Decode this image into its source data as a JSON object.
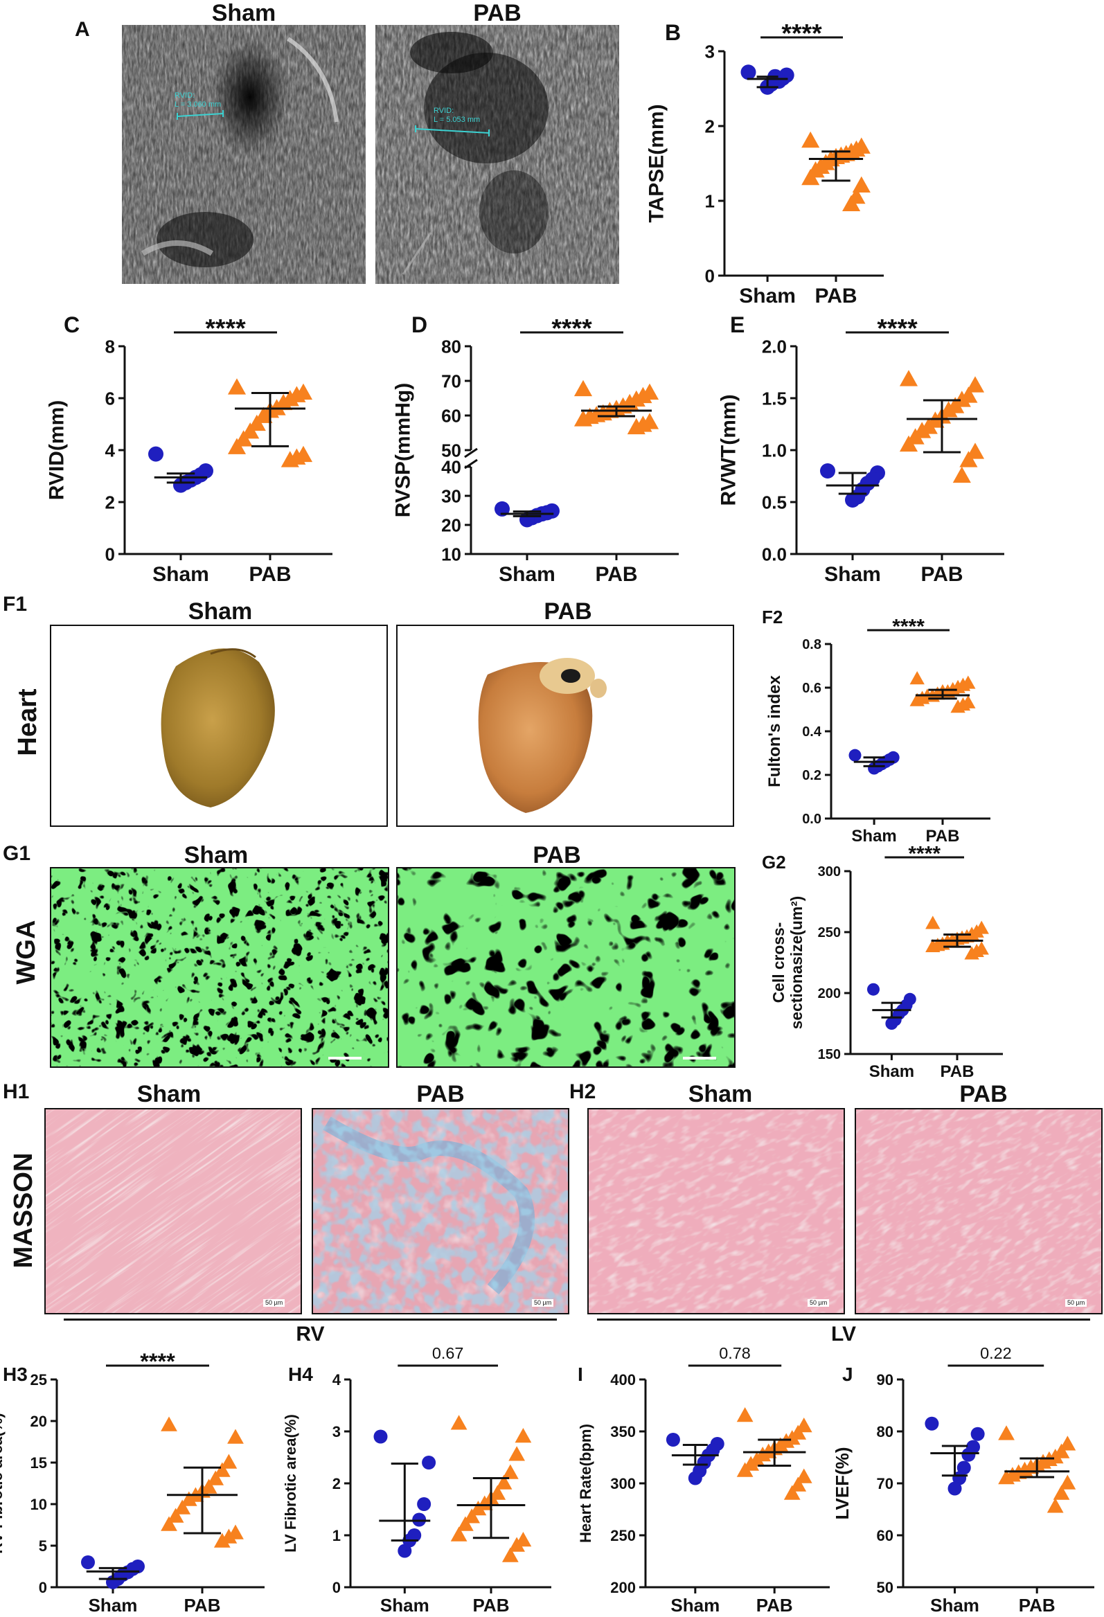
{
  "panels": {
    "A": {
      "letter": "A",
      "sham": "Sham",
      "pab": "PAB",
      "sham_measure": "RVID:\nL = 3.060 mm",
      "pab_measure": "RVID:\nL = 5.053 mm"
    },
    "F1": {
      "letter": "F1",
      "row_label": "Heart",
      "sham": "Sham",
      "pab": "PAB"
    },
    "G1": {
      "letter": "G1",
      "row_label": "WGA",
      "sham": "Sham",
      "pab": "PAB"
    },
    "H1": {
      "letter": "H1",
      "row_label": "MASSON",
      "sham": "Sham",
      "pab": "PAB",
      "group": "RV"
    },
    "H2": {
      "letter": "H2",
      "sham": "Sham",
      "pab": "PAB",
      "group": "LV"
    }
  },
  "scale_bar_label": "50 µm",
  "colors": {
    "sham": "#1f1fbf",
    "pab": "#f7811e",
    "wga": "#33d63a",
    "masson_red": "#d9717f",
    "masson_blue": "#5aa9d6"
  },
  "chart_data": [
    {
      "id": "B",
      "type": "scatter",
      "letter": "B",
      "ylabel": "TAPSE(mm)",
      "categories": [
        "Sham",
        "PAB"
      ],
      "ylim": [
        0,
        3
      ],
      "yticks": [
        "0",
        "1",
        "2",
        "3"
      ],
      "significance": "****",
      "series": [
        {
          "name": "Sham",
          "marker": "circle",
          "values": [
            2.72,
            2.68,
            2.64,
            2.6,
            2.66,
            2.56,
            2.52
          ],
          "mean": 2.63,
          "err": [
            2.52,
            2.66
          ]
        },
        {
          "name": "PAB",
          "marker": "triangle",
          "values": [
            1.8,
            1.72,
            1.68,
            1.65,
            1.62,
            1.6,
            1.58,
            1.55,
            1.5,
            1.45,
            1.4,
            1.3,
            1.2,
            1.05,
            0.95
          ],
          "mean": 1.56,
          "err": [
            1.27,
            1.66
          ]
        }
      ]
    },
    {
      "id": "C",
      "type": "scatter",
      "letter": "C",
      "ylabel": "RVID(mm)",
      "categories": [
        "Sham",
        "PAB"
      ],
      "ylim": [
        0,
        8
      ],
      "yticks": [
        "0",
        "2",
        "4",
        "6",
        "8"
      ],
      "significance": "****",
      "series": [
        {
          "name": "Sham",
          "marker": "circle",
          "values": [
            3.85,
            3.2,
            3.05,
            2.95,
            2.85,
            2.75,
            2.65
          ],
          "mean": 2.95,
          "err": [
            2.75,
            3.1
          ]
        },
        {
          "name": "PAB",
          "marker": "triangle",
          "values": [
            6.4,
            6.2,
            6.1,
            5.95,
            5.8,
            5.6,
            5.5,
            5.3,
            5.0,
            4.7,
            4.4,
            4.1,
            3.8,
            3.7,
            3.6
          ],
          "mean": 5.6,
          "err": [
            4.15,
            6.2
          ]
        }
      ]
    },
    {
      "id": "D",
      "type": "scatter",
      "letter": "D",
      "ylabel": "RVSP(mmHg)",
      "categories": [
        "Sham",
        "PAB"
      ],
      "broken_axis": true,
      "yticks_lower": [
        "10",
        "20",
        "30",
        "40"
      ],
      "yticks_upper": [
        "50",
        "60",
        "70",
        "80"
      ],
      "significance": "****",
      "series": [
        {
          "name": "Sham",
          "marker": "circle",
          "values": [
            25.5,
            24.8,
            24.2,
            23.8,
            23.2,
            22.5,
            21.8
          ],
          "mean": 23.8,
          "err": [
            23.0,
            24.6
          ]
        },
        {
          "name": "PAB",
          "marker": "triangle",
          "values": [
            67.5,
            66.5,
            65.5,
            64.5,
            63.5,
            62.5,
            61.8,
            61.2,
            60.5,
            60.0,
            59.5,
            58.8,
            58.0,
            57.2,
            56.5
          ],
          "mean": 61.4,
          "err": [
            59.8,
            62.6
          ]
        }
      ]
    },
    {
      "id": "E",
      "type": "scatter",
      "letter": "E",
      "ylabel": "RVWT(mm)",
      "categories": [
        "Sham",
        "PAB"
      ],
      "ylim": [
        0,
        2
      ],
      "yticks": [
        "0.0",
        "0.5",
        "1.0",
        "1.5",
        "2.0"
      ],
      "significance": "****",
      "series": [
        {
          "name": "Sham",
          "marker": "circle",
          "values": [
            0.8,
            0.78,
            0.72,
            0.68,
            0.62,
            0.55,
            0.52
          ],
          "mean": 0.66,
          "err": [
            0.58,
            0.78
          ]
        },
        {
          "name": "PAB",
          "marker": "triangle",
          "values": [
            1.68,
            1.62,
            1.52,
            1.48,
            1.42,
            1.38,
            1.32,
            1.28,
            1.22,
            1.18,
            1.12,
            1.05,
            0.98,
            0.9,
            0.75
          ],
          "mean": 1.3,
          "err": [
            0.98,
            1.48
          ]
        }
      ]
    },
    {
      "id": "F2",
      "type": "scatter",
      "letter": "F2",
      "ylabel": "Fulton's index",
      "categories": [
        "Sham",
        "PAB"
      ],
      "ylim": [
        0,
        0.8
      ],
      "yticks": [
        "0.0",
        "0.2",
        "0.4",
        "0.6",
        "0.8"
      ],
      "significance": "****",
      "series": [
        {
          "name": "Sham",
          "marker": "circle",
          "values": [
            0.29,
            0.28,
            0.27,
            0.26,
            0.25,
            0.24,
            0.23
          ],
          "mean": 0.26,
          "err": [
            0.24,
            0.28
          ]
        },
        {
          "name": "PAB",
          "marker": "triangle",
          "values": [
            0.64,
            0.62,
            0.61,
            0.6,
            0.59,
            0.58,
            0.58,
            0.57,
            0.56,
            0.56,
            0.55,
            0.54,
            0.53,
            0.52,
            0.51
          ],
          "mean": 0.565,
          "err": [
            0.55,
            0.59
          ]
        }
      ]
    },
    {
      "id": "G2",
      "type": "scatter",
      "letter": "G2",
      "ylabel": "Cell cross-sectionasize(um²)",
      "ylabel_lines": [
        "Cell cross-",
        "sectionasize(um²)"
      ],
      "categories": [
        "Sham",
        "PAB"
      ],
      "ylim": [
        150,
        300
      ],
      "yticks": [
        "150",
        "200",
        "250",
        "300"
      ],
      "significance": "****",
      "series": [
        {
          "name": "Sham",
          "marker": "circle",
          "values": [
            203,
            195,
            190,
            186,
            183,
            178,
            175
          ],
          "mean": 186,
          "err": [
            180,
            192
          ]
        },
        {
          "name": "PAB",
          "marker": "triangle",
          "values": [
            257,
            253,
            250,
            248,
            246,
            245,
            244,
            243,
            242,
            240,
            239,
            238,
            236,
            234,
            232
          ],
          "mean": 243,
          "err": [
            238,
            248
          ]
        }
      ]
    },
    {
      "id": "H3",
      "type": "scatter",
      "letter": "H3",
      "ylabel": "RV Fibrotic area(%)",
      "categories": [
        "Sham",
        "PAB"
      ],
      "ylim": [
        0,
        25
      ],
      "yticks": [
        "0",
        "5",
        "10",
        "15",
        "20",
        "25"
      ],
      "significance": "****",
      "series": [
        {
          "name": "Sham",
          "marker": "circle",
          "values": [
            3.0,
            2.5,
            2.2,
            1.8,
            1.5,
            1.0,
            0.6
          ],
          "mean": 1.9,
          "err": [
            1.0,
            2.3
          ]
        },
        {
          "name": "PAB",
          "marker": "triangle",
          "values": [
            19.5,
            18.0,
            15.0,
            14.0,
            13.0,
            12.0,
            11.5,
            11.0,
            10.5,
            9.5,
            8.5,
            7.5,
            6.5,
            6.0,
            5.5
          ],
          "mean": 11.1,
          "err": [
            6.5,
            14.4
          ]
        }
      ]
    },
    {
      "id": "H4",
      "type": "scatter",
      "letter": "H4",
      "ylabel": "LV Fibrotic area(%)",
      "categories": [
        "Sham",
        "PAB"
      ],
      "ylim": [
        0,
        4
      ],
      "yticks": [
        "0",
        "1",
        "2",
        "3",
        "4"
      ],
      "significance": "0.67",
      "series": [
        {
          "name": "Sham",
          "marker": "circle",
          "values": [
            2.9,
            2.4,
            1.6,
            1.3,
            1.0,
            0.9,
            0.7
          ],
          "mean": 1.28,
          "err": [
            0.9,
            2.38
          ]
        },
        {
          "name": "PAB",
          "marker": "triangle",
          "values": [
            3.15,
            2.9,
            2.55,
            2.2,
            2.0,
            1.8,
            1.7,
            1.6,
            1.5,
            1.35,
            1.2,
            1.0,
            0.9,
            0.8,
            0.6
          ],
          "mean": 1.58,
          "err": [
            0.95,
            2.1
          ]
        }
      ]
    },
    {
      "id": "I",
      "type": "scatter",
      "letter": "I",
      "ylabel": "Heart Rate(bpm)",
      "categories": [
        "Sham",
        "PAB"
      ],
      "ylim": [
        200,
        400
      ],
      "yticks": [
        "200",
        "250",
        "300",
        "350",
        "400"
      ],
      "significance": "0.78",
      "series": [
        {
          "name": "Sham",
          "marker": "circle",
          "values": [
            342,
            338,
            332,
            327,
            320,
            312,
            305
          ],
          "mean": 327,
          "err": [
            318,
            337
          ]
        },
        {
          "name": "PAB",
          "marker": "triangle",
          "values": [
            365,
            355,
            348,
            343,
            340,
            336,
            333,
            330,
            327,
            322,
            318,
            312,
            306,
            298,
            290
          ],
          "mean": 330,
          "err": [
            317,
            342
          ]
        }
      ]
    },
    {
      "id": "J",
      "type": "scatter",
      "letter": "J",
      "ylabel": "LVEF(%)",
      "categories": [
        "Sham",
        "PAB"
      ],
      "ylim": [
        50,
        90
      ],
      "yticks": [
        "50",
        "60",
        "70",
        "80",
        "90"
      ],
      "significance": "0.22",
      "series": [
        {
          "name": "Sham",
          "marker": "circle",
          "values": [
            81.5,
            79.5,
            77,
            75.5,
            73,
            71,
            69
          ],
          "mean": 75.8,
          "err": [
            71.5,
            77.2
          ]
        },
        {
          "name": "PAB",
          "marker": "triangle",
          "values": [
            79.5,
            77.5,
            76,
            75,
            74.5,
            74,
            73.5,
            73,
            72.5,
            72,
            71.5,
            71,
            70,
            68,
            65.5
          ],
          "mean": 72.3,
          "err": [
            71.2,
            74.8
          ]
        }
      ]
    }
  ]
}
